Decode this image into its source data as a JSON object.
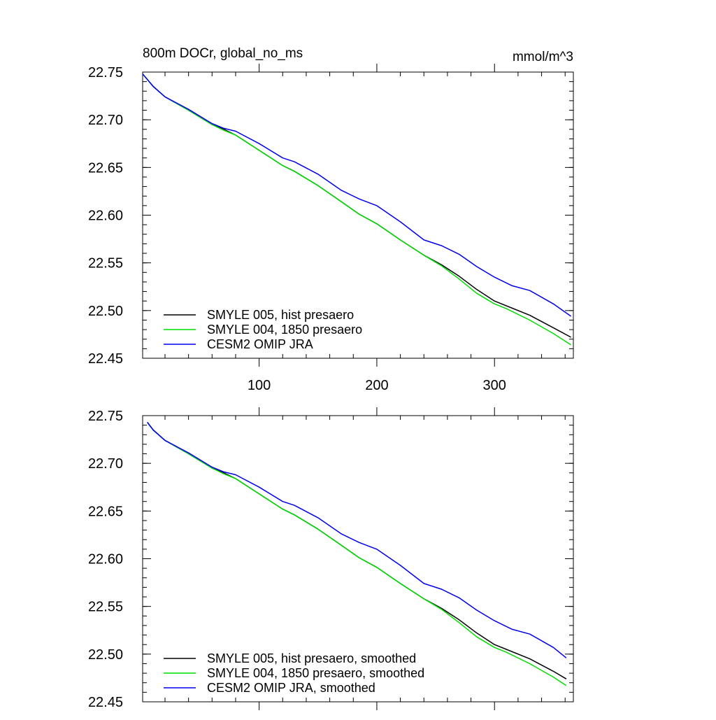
{
  "header": {
    "title": "800m DOCr, global_no_ms",
    "units": "mmol/m^3"
  },
  "chart_data": [
    {
      "type": "line",
      "title": "800m DOCr, global_no_ms",
      "units": "mmol/m^3",
      "xlim": [
        1,
        367
      ],
      "ylim": [
        22.45,
        22.75
      ],
      "xticks": [
        100,
        200,
        300
      ],
      "xtick_labels": [
        "100",
        "200",
        "300"
      ],
      "yticks": [
        22.45,
        22.5,
        22.55,
        22.6,
        22.65,
        22.7,
        22.75
      ],
      "ytick_labels": [
        "22.45",
        "22.50",
        "22.55",
        "22.60",
        "22.65",
        "22.70",
        "22.75"
      ],
      "x_minor_step": 20,
      "y_minor_step": 0.01,
      "legend_position": "bottom-left",
      "series": [
        {
          "name": "SMYLE 005, hist presaero",
          "color": "#000000",
          "x": [
            1,
            10,
            20,
            40,
            60,
            70,
            80,
            100,
            120,
            130,
            150,
            170,
            185,
            200,
            220,
            240,
            255,
            270,
            285,
            300,
            310,
            330,
            350,
            365
          ],
          "y": [
            22.748,
            22.735,
            22.724,
            22.71,
            22.695,
            22.69,
            22.684,
            22.668,
            22.652,
            22.646,
            22.631,
            22.614,
            22.601,
            22.591,
            22.574,
            22.558,
            22.548,
            22.536,
            22.522,
            22.51,
            22.505,
            22.495,
            22.482,
            22.472
          ]
        },
        {
          "name": "SMYLE 004, 1850 presaero",
          "color": "#00dd00",
          "x": [
            1,
            10,
            20,
            40,
            60,
            70,
            80,
            100,
            120,
            130,
            150,
            170,
            185,
            200,
            220,
            240,
            255,
            270,
            285,
            300,
            310,
            330,
            350,
            365
          ],
          "y": [
            22.748,
            22.735,
            22.724,
            22.71,
            22.695,
            22.689,
            22.684,
            22.668,
            22.652,
            22.646,
            22.631,
            22.614,
            22.601,
            22.591,
            22.574,
            22.558,
            22.547,
            22.533,
            22.518,
            22.507,
            22.502,
            22.49,
            22.476,
            22.464
          ]
        },
        {
          "name": "CESM2 OMIP JRA",
          "color": "#0000ee",
          "x": [
            1,
            10,
            20,
            40,
            60,
            70,
            80,
            100,
            120,
            130,
            150,
            170,
            185,
            200,
            220,
            240,
            255,
            270,
            285,
            300,
            315,
            330,
            350,
            365
          ],
          "y": [
            22.748,
            22.735,
            22.724,
            22.711,
            22.696,
            22.691,
            22.688,
            22.675,
            22.66,
            22.656,
            22.643,
            22.626,
            22.617,
            22.61,
            22.593,
            22.574,
            22.568,
            22.559,
            22.546,
            22.535,
            22.526,
            22.521,
            22.507,
            22.494
          ]
        }
      ]
    },
    {
      "type": "line",
      "title": "",
      "xlim": [
        1,
        367
      ],
      "ylim": [
        22.45,
        22.75
      ],
      "xticks": [
        100,
        200,
        300
      ],
      "xtick_labels": [],
      "yticks": [
        22.45,
        22.5,
        22.55,
        22.6,
        22.65,
        22.7,
        22.75
      ],
      "ytick_labels": [
        "22.45",
        "22.50",
        "22.55",
        "22.60",
        "22.65",
        "22.70",
        "22.75"
      ],
      "x_minor_step": 20,
      "y_minor_step": 0.01,
      "legend_position": "bottom-left",
      "series": [
        {
          "name": "SMYLE 005, hist presaero, smoothed",
          "color": "#000000",
          "x": [
            5,
            10,
            20,
            40,
            60,
            70,
            80,
            100,
            120,
            130,
            150,
            170,
            185,
            200,
            220,
            240,
            255,
            270,
            285,
            300,
            310,
            330,
            350,
            361
          ],
          "y": [
            22.743,
            22.735,
            22.724,
            22.71,
            22.695,
            22.69,
            22.684,
            22.668,
            22.652,
            22.646,
            22.631,
            22.614,
            22.601,
            22.591,
            22.574,
            22.558,
            22.548,
            22.536,
            22.522,
            22.51,
            22.505,
            22.495,
            22.482,
            22.474
          ]
        },
        {
          "name": "SMYLE 004, 1850 presaero, smoothed",
          "color": "#00dd00",
          "x": [
            5,
            10,
            20,
            40,
            60,
            70,
            80,
            100,
            120,
            130,
            150,
            170,
            185,
            200,
            220,
            240,
            255,
            270,
            285,
            300,
            310,
            330,
            350,
            361
          ],
          "y": [
            22.743,
            22.735,
            22.724,
            22.71,
            22.695,
            22.689,
            22.684,
            22.668,
            22.652,
            22.646,
            22.631,
            22.614,
            22.601,
            22.591,
            22.574,
            22.558,
            22.547,
            22.533,
            22.518,
            22.507,
            22.502,
            22.49,
            22.476,
            22.467
          ]
        },
        {
          "name": "CESM2 OMIP JRA, smoothed",
          "color": "#0000ee",
          "x": [
            5,
            10,
            20,
            40,
            60,
            70,
            80,
            100,
            120,
            130,
            150,
            170,
            185,
            200,
            220,
            240,
            255,
            270,
            285,
            300,
            315,
            330,
            350,
            361
          ],
          "y": [
            22.743,
            22.735,
            22.724,
            22.711,
            22.696,
            22.691,
            22.688,
            22.675,
            22.66,
            22.656,
            22.643,
            22.626,
            22.617,
            22.61,
            22.593,
            22.574,
            22.568,
            22.559,
            22.546,
            22.535,
            22.526,
            22.521,
            22.507,
            22.496
          ]
        }
      ]
    }
  ]
}
